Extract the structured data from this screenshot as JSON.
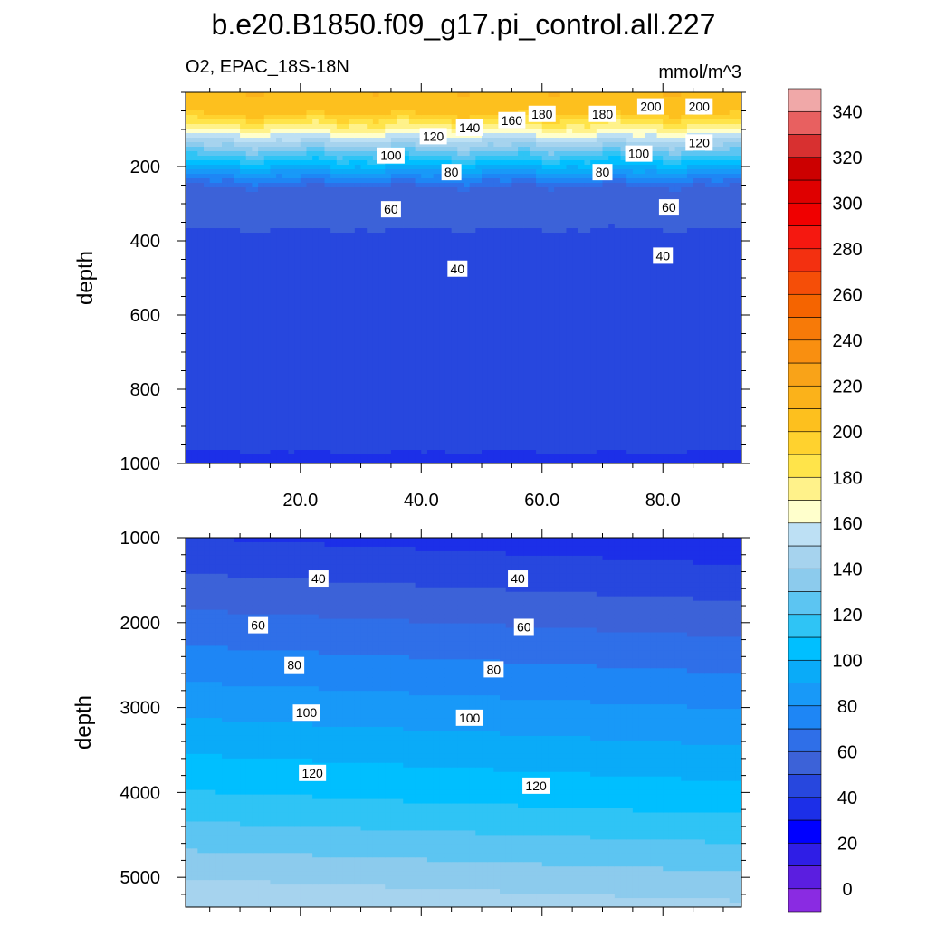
{
  "chart_data": {
    "type": "contour",
    "title": "b.e20.B1850.f09_g17.pi_control.all.227",
    "variable_label": "O2, EPAC_18S-18N",
    "units_label": "mmol/m^3",
    "x_range": [
      1,
      93
    ],
    "x_ticks": [
      20.0,
      40.0,
      60.0,
      80.0
    ],
    "x_tick_labels": [
      "20.0",
      "40.0",
      "60.0",
      "80.0"
    ],
    "panels": [
      {
        "ylabel": "depth",
        "ylim": [
          0,
          1000
        ],
        "y_reversed": true,
        "y_ticks": [
          200,
          400,
          600,
          800,
          1000
        ],
        "y_tick_labels": [
          "200",
          "400",
          "600",
          "800",
          "1000"
        ],
        "contour_labels": [
          {
            "text": "200",
            "x": 78,
            "y": 38
          },
          {
            "text": "200",
            "x": 86,
            "y": 38
          },
          {
            "text": "180",
            "x": 60,
            "y": 58
          },
          {
            "text": "180",
            "x": 70,
            "y": 58
          },
          {
            "text": "160",
            "x": 55,
            "y": 75
          },
          {
            "text": "140",
            "x": 48,
            "y": 95
          },
          {
            "text": "120",
            "x": 42,
            "y": 118
          },
          {
            "text": "120",
            "x": 86,
            "y": 135
          },
          {
            "text": "100",
            "x": 35,
            "y": 170
          },
          {
            "text": "100",
            "x": 76,
            "y": 165
          },
          {
            "text": "80",
            "x": 45,
            "y": 215
          },
          {
            "text": "80",
            "x": 70,
            "y": 215
          },
          {
            "text": "60",
            "x": 35,
            "y": 315
          },
          {
            "text": "60",
            "x": 81,
            "y": 310
          },
          {
            "text": "40",
            "x": 46,
            "y": 475
          },
          {
            "text": "40",
            "x": 80,
            "y": 440
          }
        ]
      },
      {
        "ylabel": "depth",
        "ylim": [
          1000,
          5350
        ],
        "y_reversed": true,
        "y_ticks": [
          1000,
          2000,
          3000,
          4000,
          5000
        ],
        "y_tick_labels": [
          "1000",
          "2000",
          "3000",
          "4000",
          "5000"
        ],
        "contour_labels": [
          {
            "text": "40",
            "x": 23,
            "y": 1480
          },
          {
            "text": "40",
            "x": 56,
            "y": 1480
          },
          {
            "text": "60",
            "x": 13,
            "y": 2030
          },
          {
            "text": "60",
            "x": 57,
            "y": 2050
          },
          {
            "text": "80",
            "x": 19,
            "y": 2500
          },
          {
            "text": "80",
            "x": 52,
            "y": 2550
          },
          {
            "text": "100",
            "x": 21,
            "y": 3060
          },
          {
            "text": "100",
            "x": 48,
            "y": 3120
          },
          {
            "text": "120",
            "x": 22,
            "y": 3770
          },
          {
            "text": "120",
            "x": 59,
            "y": 3920
          }
        ]
      }
    ],
    "colorbar": {
      "levels": [
        -10,
        0,
        10,
        20,
        30,
        40,
        50,
        60,
        70,
        80,
        90,
        100,
        110,
        120,
        130,
        140,
        150,
        160,
        170,
        180,
        190,
        200,
        210,
        220,
        230,
        240,
        250,
        260,
        270,
        280,
        290,
        300,
        310,
        320,
        330,
        340,
        350,
        360
      ],
      "tick_values": [
        0,
        20,
        40,
        60,
        80,
        100,
        120,
        140,
        160,
        180,
        200,
        220,
        240,
        260,
        280,
        300,
        320,
        340
      ],
      "colors": [
        "#8a2be2",
        "#5b1ee0",
        "#2f1ee6",
        "#0000ff",
        "#1c2fe8",
        "#2747de",
        "#3c62d8",
        "#2f6fe8",
        "#1e86f5",
        "#1899f8",
        "#0aabf8",
        "#00bfff",
        "#2fc4f5",
        "#5cc5f2",
        "#8ccbed",
        "#a6d3ee",
        "#bde0f4",
        "#ffffcc",
        "#fff28a",
        "#ffe44a",
        "#ffd22e",
        "#fdc01e",
        "#fbb21a",
        "#f9a318",
        "#f98f10",
        "#f77a08",
        "#f56400",
        "#f54e08",
        "#f33010",
        "#f51810",
        "#f00000",
        "#df0000",
        "#cc0000",
        "#d83030",
        "#e86060",
        "#f0a8a8"
      ]
    }
  }
}
